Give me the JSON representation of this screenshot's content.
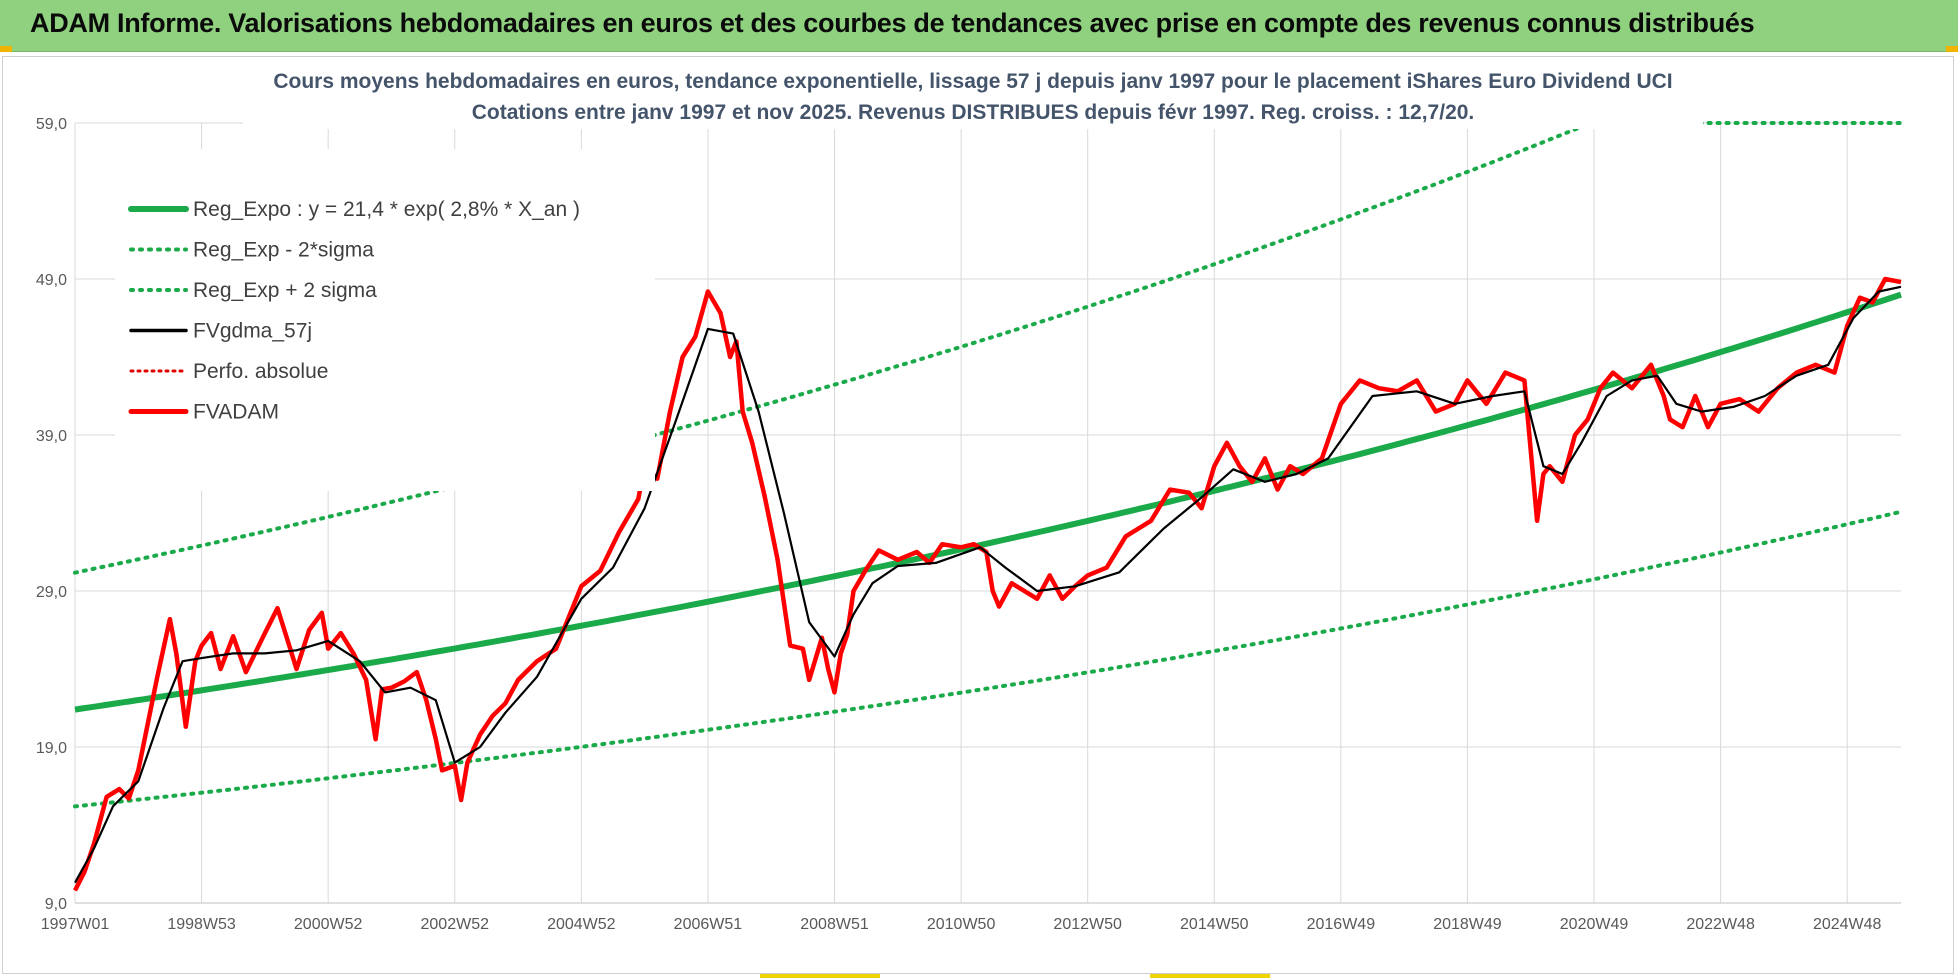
{
  "banner": {
    "title": "ADAM Informe. Valorisations hebdomadaires en euros et des courbes de tendances avec prise en compte des revenus connus distribués"
  },
  "colors": {
    "banner_bg": "#8fd17f",
    "reg_expo": "#1aaa4a",
    "fvgdma": "#000000",
    "perfo": "#e00000",
    "fvadam": "#ff0000",
    "grid": "#d9d9d9",
    "axis_text": "#595959",
    "title_text": "#44546a"
  },
  "chart_data": {
    "type": "line",
    "title": "Cours moyens hebdomadaires en euros, tendance exponentielle, lissage 57 j depuis janv 1997 pour le placement iShares Euro Dividend UCI",
    "subtitle": "Cotations entre janv 1997 et nov 2025. Revenus DISTRIBUES depuis févr 1997. Reg. croiss. : 12,7/20.",
    "xlabel": "",
    "ylabel": "",
    "x_range": [
      1997.0,
      2025.85
    ],
    "ylim": [
      9.0,
      59.0
    ],
    "yticks": [
      9.0,
      19.0,
      29.0,
      39.0,
      49.0,
      59.0
    ],
    "ytick_labels": [
      "9,0",
      "19,0",
      "29,0",
      "39,0",
      "49,0",
      "59,0"
    ],
    "xticks": [
      {
        "label": "1997W01",
        "x": 1997.0
      },
      {
        "label": "1998W53",
        "x": 1999.0
      },
      {
        "label": "2000W52",
        "x": 2001.0
      },
      {
        "label": "2002W52",
        "x": 2003.0
      },
      {
        "label": "2004W52",
        "x": 2005.0
      },
      {
        "label": "2006W51",
        "x": 2007.0
      },
      {
        "label": "2008W51",
        "x": 2009.0
      },
      {
        "label": "2010W50",
        "x": 2011.0
      },
      {
        "label": "2012W50",
        "x": 2013.0
      },
      {
        "label": "2014W50",
        "x": 2015.0
      },
      {
        "label": "2016W49",
        "x": 2017.0
      },
      {
        "label": "2018W49",
        "x": 2019.0
      },
      {
        "label": "2020W49",
        "x": 2021.0
      },
      {
        "label": "2022W48",
        "x": 2023.0
      },
      {
        "label": "2024W48",
        "x": 2025.0
      }
    ],
    "legend_position": "top-left",
    "legend": [
      {
        "label": "Reg_Expo : y = 21,4 * exp( 2,8% *  X_an )",
        "series": "reg_expo",
        "style": "solid-thick"
      },
      {
        "label": "Reg_Exp - 2*sigma",
        "series": "reg_minus",
        "style": "dotted"
      },
      {
        "label": "Reg_Exp + 2 sigma",
        "series": "reg_plus",
        "style": "dotted"
      },
      {
        "label": "FVgdma_57j",
        "series": "fvgdma",
        "style": "solid"
      },
      {
        "label": "Perfo. absolue",
        "series": "perfo",
        "style": "dotted"
      },
      {
        "label": "FVADAM",
        "series": "fvadam",
        "style": "solid-thick"
      }
    ],
    "regression": {
      "a": 21.4,
      "rate": 0.028,
      "minus_factor": 0.71,
      "plus_factor": 1.41
    },
    "series": [
      {
        "name": "FVADAM",
        "x": [
          1997.0,
          1997.15,
          1997.3,
          1997.5,
          1997.7,
          1997.85,
          1998.0,
          1998.15,
          1998.3,
          1998.5,
          1998.6,
          1998.75,
          1998.9,
          1999.0,
          1999.15,
          1999.3,
          1999.5,
          1999.7,
          2000.0,
          2000.2,
          2000.4,
          2000.5,
          2000.7,
          2000.9,
          2001.0,
          2001.2,
          2001.4,
          2001.6,
          2001.75,
          2001.85,
          2002.0,
          2002.2,
          2002.4,
          2002.55,
          2002.7,
          2002.8,
          2003.0,
          2003.1,
          2003.2,
          2003.4,
          2003.6,
          2003.8,
          2004.0,
          2004.3,
          2004.6,
          2005.0,
          2005.3,
          2005.6,
          2005.9,
          2006.0,
          2006.2,
          2006.4,
          2006.6,
          2006.8,
          2007.0,
          2007.2,
          2007.35,
          2007.45,
          2007.55,
          2007.7,
          2007.9,
          2008.1,
          2008.3,
          2008.5,
          2008.6,
          2008.8,
          2008.9,
          2009.0,
          2009.1,
          2009.2,
          2009.3,
          2009.5,
          2009.7,
          2010.0,
          2010.3,
          2010.5,
          2010.7,
          2011.0,
          2011.2,
          2011.4,
          2011.5,
          2011.6,
          2011.8,
          2012.0,
          2012.2,
          2012.4,
          2012.6,
          2012.8,
          2013.0,
          2013.3,
          2013.6,
          2014.0,
          2014.3,
          2014.6,
          2014.8,
          2015.0,
          2015.2,
          2015.4,
          2015.6,
          2015.8,
          2016.0,
          2016.2,
          2016.4,
          2016.7,
          2017.0,
          2017.3,
          2017.6,
          2017.9,
          2018.2,
          2018.5,
          2018.8,
          2019.0,
          2019.3,
          2019.6,
          2019.9,
          2020.1,
          2020.2,
          2020.3,
          2020.5,
          2020.7,
          2020.9,
          2021.1,
          2021.3,
          2021.6,
          2021.9,
          2022.1,
          2022.2,
          2022.4,
          2022.6,
          2022.8,
          2023.0,
          2023.3,
          2023.6,
          2023.9,
          2024.2,
          2024.5,
          2024.8,
          2025.0,
          2025.2,
          2025.4,
          2025.6,
          2025.85
        ],
        "values": [
          9.8,
          11.0,
          12.8,
          15.8,
          16.3,
          15.7,
          17.5,
          20.5,
          23.5,
          27.2,
          25.0,
          20.3,
          24.5,
          25.5,
          26.3,
          24.0,
          26.1,
          23.8,
          26.3,
          27.9,
          25.3,
          24.0,
          26.5,
          27.6,
          25.3,
          26.3,
          25.0,
          23.3,
          19.5,
          22.7,
          22.8,
          23.2,
          23.8,
          22.0,
          19.5,
          17.5,
          17.8,
          15.6,
          18.0,
          19.8,
          21.0,
          21.8,
          23.3,
          24.5,
          25.3,
          29.3,
          30.3,
          32.8,
          34.9,
          37.0,
          36.2,
          40.5,
          44.0,
          45.3,
          48.2,
          46.8,
          44.0,
          45.0,
          40.5,
          38.5,
          35.0,
          31.0,
          25.5,
          25.3,
          23.3,
          26.0,
          24.0,
          22.5,
          25.0,
          26.2,
          29.0,
          30.4,
          31.6,
          31.0,
          31.5,
          30.8,
          32.0,
          31.8,
          32.0,
          31.5,
          29.0,
          28.0,
          29.5,
          29.0,
          28.5,
          30.0,
          28.5,
          29.3,
          30.0,
          30.5,
          32.5,
          33.5,
          35.5,
          35.3,
          34.3,
          37.0,
          38.5,
          37.0,
          36.0,
          37.5,
          35.5,
          37.0,
          36.5,
          37.5,
          41.0,
          42.5,
          42.0,
          41.8,
          42.5,
          40.5,
          41.0,
          42.5,
          41.0,
          43.0,
          42.5,
          33.5,
          36.5,
          37.0,
          36.0,
          39.0,
          40.0,
          42.0,
          43.0,
          42.0,
          43.5,
          41.5,
          40.0,
          39.5,
          41.5,
          39.5,
          41.0,
          41.3,
          40.5,
          42.0,
          43.0,
          43.5,
          43.0,
          46.0,
          47.8,
          47.5,
          49.0,
          48.8
        ]
      },
      {
        "name": "FVgdma_57j",
        "x": [
          1997.0,
          1997.3,
          1997.6,
          1998.0,
          1998.4,
          1998.7,
          1999.0,
          1999.5,
          2000.0,
          2000.5,
          2001.0,
          2001.5,
          2001.9,
          2002.3,
          2002.7,
          2003.0,
          2003.4,
          2003.8,
          2004.3,
          2005.0,
          2005.5,
          2006.0,
          2006.5,
          2007.0,
          2007.4,
          2007.8,
          2008.2,
          2008.6,
          2009.0,
          2009.3,
          2009.6,
          2010.0,
          2010.6,
          2011.3,
          2011.7,
          2012.2,
          2012.8,
          2013.5,
          2014.2,
          2014.8,
          2015.3,
          2015.8,
          2016.3,
          2016.8,
          2017.5,
          2018.2,
          2018.8,
          2019.4,
          2019.9,
          2020.2,
          2020.5,
          2020.8,
          2021.2,
          2021.6,
          2022.0,
          2022.3,
          2022.7,
          2023.2,
          2023.7,
          2024.2,
          2024.7,
          2025.1,
          2025.5,
          2025.85
        ],
        "values": [
          10.3,
          12.5,
          15.2,
          16.8,
          21.5,
          24.5,
          24.7,
          25.0,
          25.0,
          25.2,
          25.8,
          24.5,
          22.5,
          22.8,
          22.0,
          18.0,
          19.0,
          21.2,
          23.5,
          28.5,
          30.5,
          34.3,
          40.0,
          45.8,
          45.5,
          40.5,
          34.0,
          27.0,
          24.8,
          27.5,
          29.5,
          30.6,
          30.8,
          31.8,
          30.5,
          29.0,
          29.3,
          30.2,
          33.0,
          35.0,
          36.8,
          36.0,
          36.5,
          37.5,
          41.5,
          41.8,
          41.0,
          41.5,
          41.8,
          37.0,
          36.5,
          38.5,
          41.5,
          42.5,
          42.8,
          41.0,
          40.5,
          40.8,
          41.5,
          42.8,
          43.5,
          46.5,
          48.2,
          48.5
        ]
      }
    ]
  }
}
